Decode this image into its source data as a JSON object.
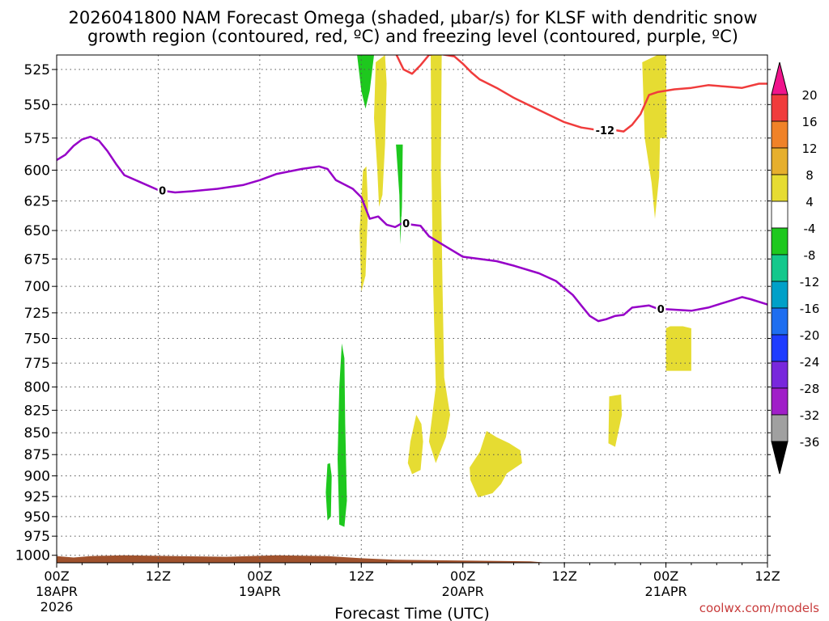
{
  "chart_data": {
    "type": "time-height contour",
    "title_line1": "2026041800 NAM Forecast Omega (shaded, μbar/s) for KLSF with dendritic snow",
    "title_line2": "growth region (contoured, red, ºC) and freezing level (contoured, purple, ºC)",
    "xlabel": "Forecast Time (UTC)",
    "credit": "coolwx.com/models",
    "x_range_hours": [
      0,
      84
    ],
    "y_range_hpa": [
      515,
      1010
    ],
    "y_scale": "log",
    "x_ticks": [
      {
        "h": 0,
        "label": "00Z",
        "date": "18APR",
        "year": "2026"
      },
      {
        "h": 12,
        "label": "12Z",
        "date": "",
        "year": ""
      },
      {
        "h": 24,
        "label": "00Z",
        "date": "19APR",
        "year": ""
      },
      {
        "h": 36,
        "label": "12Z",
        "date": "",
        "year": ""
      },
      {
        "h": 48,
        "label": "00Z",
        "date": "20APR",
        "year": ""
      },
      {
        "h": 60,
        "label": "12Z",
        "date": "",
        "year": ""
      },
      {
        "h": 72,
        "label": "00Z",
        "date": "21APR",
        "year": ""
      },
      {
        "h": 84,
        "label": "12Z",
        "date": "",
        "year": ""
      }
    ],
    "y_ticks": [
      "525",
      "550",
      "575",
      "600",
      "625",
      "650",
      "675",
      "700",
      "725",
      "750",
      "775",
      "800",
      "825",
      "850",
      "875",
      "900",
      "925",
      "950",
      "975",
      "1000"
    ],
    "colorbar": {
      "labels": [
        "20",
        "16",
        "12",
        "8",
        "4",
        "-4",
        "-8",
        "-12",
        "-16",
        "-20",
        "-24",
        "-28",
        "-32",
        "-36"
      ],
      "colors": [
        "#f03c3c",
        "#f08228",
        "#e6af2d",
        "#e6dc32",
        "#ffffff",
        "#1ec81e",
        "#14c88c",
        "#00a0c8",
        "#1e6ef0",
        "#1e3cff",
        "#7828dc",
        "#a01ec8",
        "#a0a0a0"
      ],
      "top_color": "#f0148c",
      "bottom_color": "#000000"
    },
    "series": [
      {
        "name": "freezing level (0 ºC)",
        "color": "#9600c8",
        "label": "0",
        "points": [
          [
            0,
            592
          ],
          [
            1,
            588
          ],
          [
            2,
            581
          ],
          [
            3,
            576
          ],
          [
            4,
            574
          ],
          [
            5,
            577
          ],
          [
            6,
            585
          ],
          [
            7,
            595
          ],
          [
            8,
            604
          ],
          [
            10,
            610
          ],
          [
            12,
            616
          ],
          [
            14,
            618
          ],
          [
            16,
            617
          ],
          [
            19,
            615
          ],
          [
            22,
            612
          ],
          [
            24,
            608
          ],
          [
            26,
            603
          ],
          [
            29,
            599
          ],
          [
            31,
            597
          ],
          [
            32,
            599
          ],
          [
            33,
            608
          ],
          [
            35,
            615
          ],
          [
            36,
            622
          ],
          [
            37,
            640
          ],
          [
            38,
            638
          ],
          [
            39,
            645
          ],
          [
            40,
            647
          ],
          [
            41,
            643
          ],
          [
            42,
            645
          ],
          [
            43,
            646
          ],
          [
            44,
            655
          ],
          [
            46,
            664
          ],
          [
            48,
            673
          ],
          [
            50,
            675
          ],
          [
            52,
            677
          ],
          [
            54,
            681
          ],
          [
            57,
            688
          ],
          [
            59,
            695
          ],
          [
            61,
            708
          ],
          [
            62,
            718
          ],
          [
            63,
            728
          ],
          [
            64,
            733
          ],
          [
            65,
            731
          ],
          [
            66,
            728
          ],
          [
            67,
            727
          ],
          [
            68,
            720
          ],
          [
            70,
            718
          ],
          [
            71,
            721
          ],
          [
            73,
            722
          ],
          [
            75,
            723
          ],
          [
            77,
            720
          ],
          [
            79,
            715
          ],
          [
            81,
            710
          ],
          [
            82,
            712
          ],
          [
            84,
            717
          ]
        ]
      },
      {
        "name": "dendritic growth (-12 ºC)",
        "color": "#f03c3c",
        "label": "-12",
        "points": [
          [
            40,
            513
          ],
          [
            41,
            525
          ],
          [
            42,
            528
          ],
          [
            43,
            522
          ],
          [
            44,
            515
          ],
          [
            45,
            514
          ],
          [
            47,
            516
          ],
          [
            48,
            521
          ],
          [
            49,
            527
          ],
          [
            50,
            532
          ],
          [
            52,
            538
          ],
          [
            54,
            545
          ],
          [
            56,
            551
          ],
          [
            58,
            557
          ],
          [
            60,
            563
          ],
          [
            62,
            567
          ],
          [
            63,
            568
          ],
          [
            64,
            569
          ],
          [
            66,
            569
          ],
          [
            67,
            570
          ],
          [
            68,
            565
          ],
          [
            69,
            557
          ],
          [
            70,
            543
          ],
          [
            71,
            541
          ],
          [
            73,
            539
          ],
          [
            75,
            538
          ],
          [
            77,
            536
          ],
          [
            79,
            537
          ],
          [
            81,
            538
          ],
          [
            83,
            535
          ],
          [
            84,
            535
          ]
        ]
      }
    ],
    "omega_regions": [
      {
        "sign": "negative",
        "class": "-4",
        "points": [
          [
            35.5,
            515
          ],
          [
            36,
            540
          ],
          [
            36.5,
            553
          ],
          [
            37,
            540
          ],
          [
            37.5,
            515
          ]
        ]
      },
      {
        "sign": "negative",
        "class": "-4",
        "points": [
          [
            40.1,
            580
          ],
          [
            40.5,
            620
          ],
          [
            40.6,
            662
          ],
          [
            40.8,
            630
          ],
          [
            40.9,
            580
          ]
        ]
      },
      {
        "sign": "negative",
        "class": "-4",
        "points": [
          [
            33.7,
            755
          ],
          [
            33.4,
            800
          ],
          [
            33.2,
            880
          ],
          [
            33.4,
            960
          ],
          [
            34,
            963
          ],
          [
            34.3,
            930
          ],
          [
            34.1,
            840
          ],
          [
            34,
            770
          ]
        ]
      },
      {
        "sign": "negative",
        "class": "-4",
        "points": [
          [
            32,
            886
          ],
          [
            31.8,
            920
          ],
          [
            32,
            955
          ],
          [
            32.4,
            950
          ],
          [
            32.5,
            900
          ],
          [
            32.3,
            885
          ]
        ]
      },
      {
        "sign": "positive",
        "class": "4",
        "points": [
          [
            37.7,
            520
          ],
          [
            37.5,
            560
          ],
          [
            37.9,
            600
          ],
          [
            38.1,
            630
          ],
          [
            38.5,
            620
          ],
          [
            38.8,
            580
          ],
          [
            39,
            535
          ],
          [
            38.8,
            515
          ]
        ]
      },
      {
        "sign": "positive",
        "class": "4",
        "points": [
          [
            36.2,
            600
          ],
          [
            35.8,
            650
          ],
          [
            36,
            705
          ],
          [
            36.5,
            690
          ],
          [
            36.8,
            630
          ],
          [
            36.6,
            597
          ]
        ]
      },
      {
        "sign": "positive",
        "class": "4",
        "points": [
          [
            44.2,
            515
          ],
          [
            44.3,
            600
          ],
          [
            44.5,
            700
          ],
          [
            44.8,
            800
          ],
          [
            44,
            860
          ],
          [
            44.8,
            885
          ],
          [
            46,
            855
          ],
          [
            46.5,
            830
          ],
          [
            45.8,
            790
          ],
          [
            45.6,
            700
          ],
          [
            45.4,
            600
          ],
          [
            45.5,
            515
          ]
        ]
      },
      {
        "sign": "positive",
        "class": "4",
        "points": [
          [
            42.5,
            830
          ],
          [
            41.8,
            860
          ],
          [
            41.5,
            885
          ],
          [
            42,
            898
          ],
          [
            43,
            893
          ],
          [
            43.3,
            860
          ],
          [
            43.1,
            840
          ]
        ]
      },
      {
        "sign": "positive",
        "class": "4",
        "points": [
          [
            50.8,
            848
          ],
          [
            50,
            872
          ],
          [
            48.8,
            890
          ],
          [
            48.9,
            905
          ],
          [
            49.8,
            926
          ],
          [
            51.5,
            921
          ],
          [
            52.5,
            910
          ],
          [
            53.2,
            897
          ],
          [
            55,
            885
          ],
          [
            54.8,
            870
          ],
          [
            53.5,
            862
          ],
          [
            52,
            855
          ]
        ]
      },
      {
        "sign": "positive",
        "class": "4",
        "points": [
          [
            71,
            515
          ],
          [
            69.2,
            520
          ],
          [
            69.5,
            575
          ],
          [
            70.3,
            610
          ],
          [
            70.7,
            640
          ],
          [
            71.2,
            605
          ],
          [
            71.3,
            575
          ],
          [
            72.1,
            575
          ],
          [
            72,
            515
          ]
        ]
      },
      {
        "sign": "positive",
        "class": "4",
        "points": [
          [
            72,
            740
          ],
          [
            72,
            783
          ],
          [
            75,
            783
          ],
          [
            75,
            740
          ],
          [
            74,
            738
          ],
          [
            72.5,
            738
          ]
        ]
      },
      {
        "sign": "positive",
        "class": "4",
        "points": [
          [
            65.3,
            810
          ],
          [
            65.2,
            862
          ],
          [
            66,
            866
          ],
          [
            66.8,
            830
          ],
          [
            66.7,
            808
          ]
        ]
      }
    ],
    "terrain_fill_color": "#a0522d",
    "surface_profile": [
      [
        0,
        1001
      ],
      [
        2,
        1003
      ],
      [
        4,
        1001
      ],
      [
        8,
        1000
      ],
      [
        14,
        1001
      ],
      [
        20,
        1002
      ],
      [
        26,
        1000
      ],
      [
        32,
        1001
      ],
      [
        36,
        1004
      ],
      [
        40,
        1006
      ],
      [
        48,
        1007
      ],
      [
        56,
        1008
      ],
      [
        60,
        1012
      ],
      [
        64,
        1015
      ],
      [
        70,
        1011
      ],
      [
        76,
        1012
      ],
      [
        80,
        1010
      ],
      [
        84,
        1012
      ]
    ]
  }
}
